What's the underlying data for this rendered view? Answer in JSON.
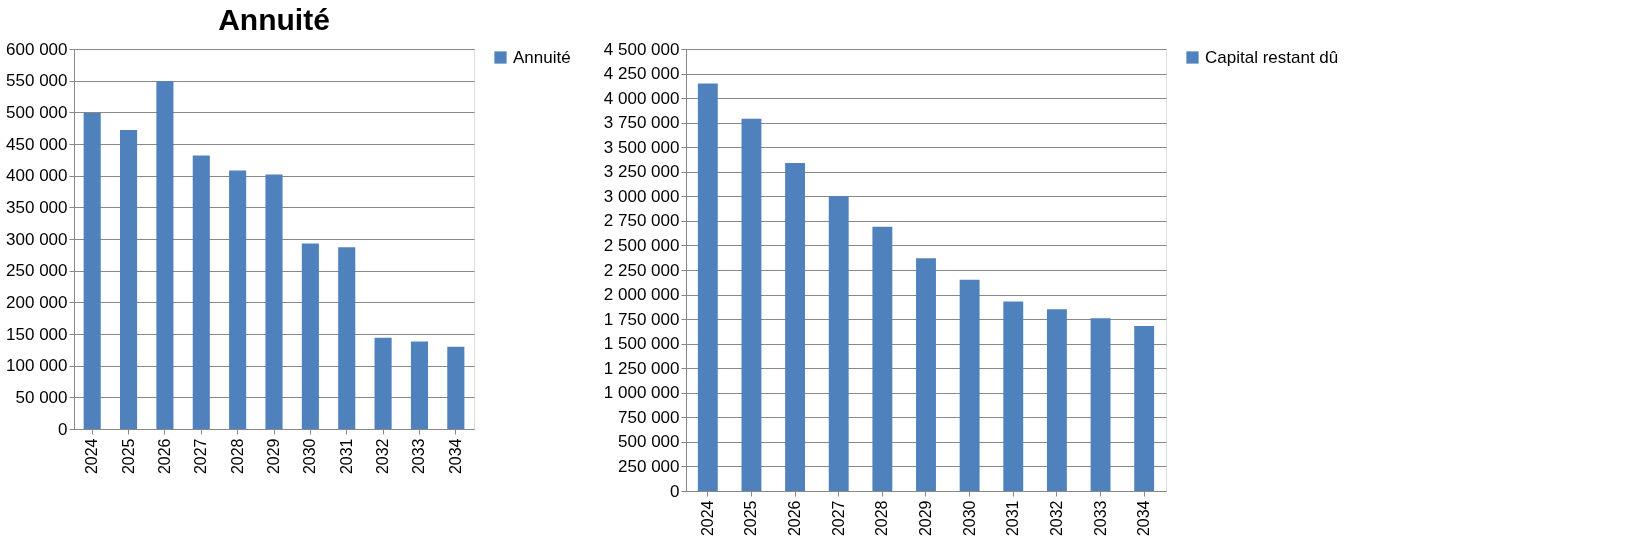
{
  "chart_data": [
    {
      "type": "bar",
      "title": "Annuité",
      "categories": [
        "2024",
        "2025",
        "2026",
        "2027",
        "2028",
        "2029",
        "2030",
        "2031",
        "2032",
        "2033",
        "2034"
      ],
      "series": [
        {
          "name": "Annuité",
          "color": "#4f81bd",
          "values": [
            499000,
            472000,
            549000,
            432000,
            408000,
            402000,
            293000,
            287000,
            144000,
            138000,
            130000
          ]
        }
      ],
      "ylim": [
        0,
        600000
      ],
      "yticks": [
        0,
        {
          "value": 50000,
          "label": "50 000"
        },
        {
          "value": 100000,
          "label": "100 000"
        },
        {
          "value": 150000,
          "label": "150 000"
        },
        {
          "value": 200000,
          "label": "200 000"
        },
        {
          "value": 250000,
          "label": "250 000"
        },
        {
          "value": 300000,
          "label": "300 000"
        },
        {
          "value": 350000,
          "label": "350 000"
        },
        {
          "value": 400000,
          "label": "400 000"
        },
        {
          "value": 450000,
          "label": "450 000"
        },
        {
          "value": 500000,
          "label": "500 000"
        },
        {
          "value": 550000,
          "label": "550 000"
        },
        {
          "value": 600000,
          "label": "600 000"
        }
      ],
      "grid": "y",
      "legend": "right"
    },
    {
      "type": "bar",
      "categories": [
        "2024",
        "2025",
        "2026",
        "2027",
        "2028",
        "2029",
        "2030",
        "2031",
        "2032",
        "2033",
        "2034"
      ],
      "series": [
        {
          "name": "Capital restant dû",
          "color": "#4f81bd",
          "values": [
            4150000,
            3790000,
            3340000,
            3000000,
            2690000,
            2370000,
            2150000,
            1930000,
            1850000,
            1760000,
            1680000
          ]
        }
      ],
      "ylim": [
        0,
        4500000
      ],
      "yticks": [
        0,
        {
          "value": 250000,
          "label": "250 000"
        },
        {
          "value": 500000,
          "label": "500 000"
        },
        {
          "value": 750000,
          "label": "750 000"
        },
        {
          "value": 1000000,
          "label": "1 000 000"
        },
        {
          "value": 1250000,
          "label": "1 250 000"
        },
        {
          "value": 1500000,
          "label": "1 500 000"
        },
        {
          "value": 1750000,
          "label": "1 750 000"
        },
        {
          "value": 2000000,
          "label": "2 000 000"
        },
        {
          "value": 2250000,
          "label": "2 250 000"
        },
        {
          "value": 2500000,
          "label": "2 500 000"
        },
        {
          "value": 2750000,
          "label": "2 750 000"
        },
        {
          "value": 3000000,
          "label": "3 000 000"
        },
        {
          "value": 3250000,
          "label": "3 250 000"
        },
        {
          "value": 3500000,
          "label": "3 500 000"
        },
        {
          "value": 3750000,
          "label": "3 750 000"
        },
        {
          "value": 4000000,
          "label": "4 000 000"
        },
        {
          "value": 4250000,
          "label": "4 250 000"
        },
        {
          "value": 4500000,
          "label": "4 500 000"
        }
      ],
      "grid": "y",
      "legend": "right"
    }
  ]
}
